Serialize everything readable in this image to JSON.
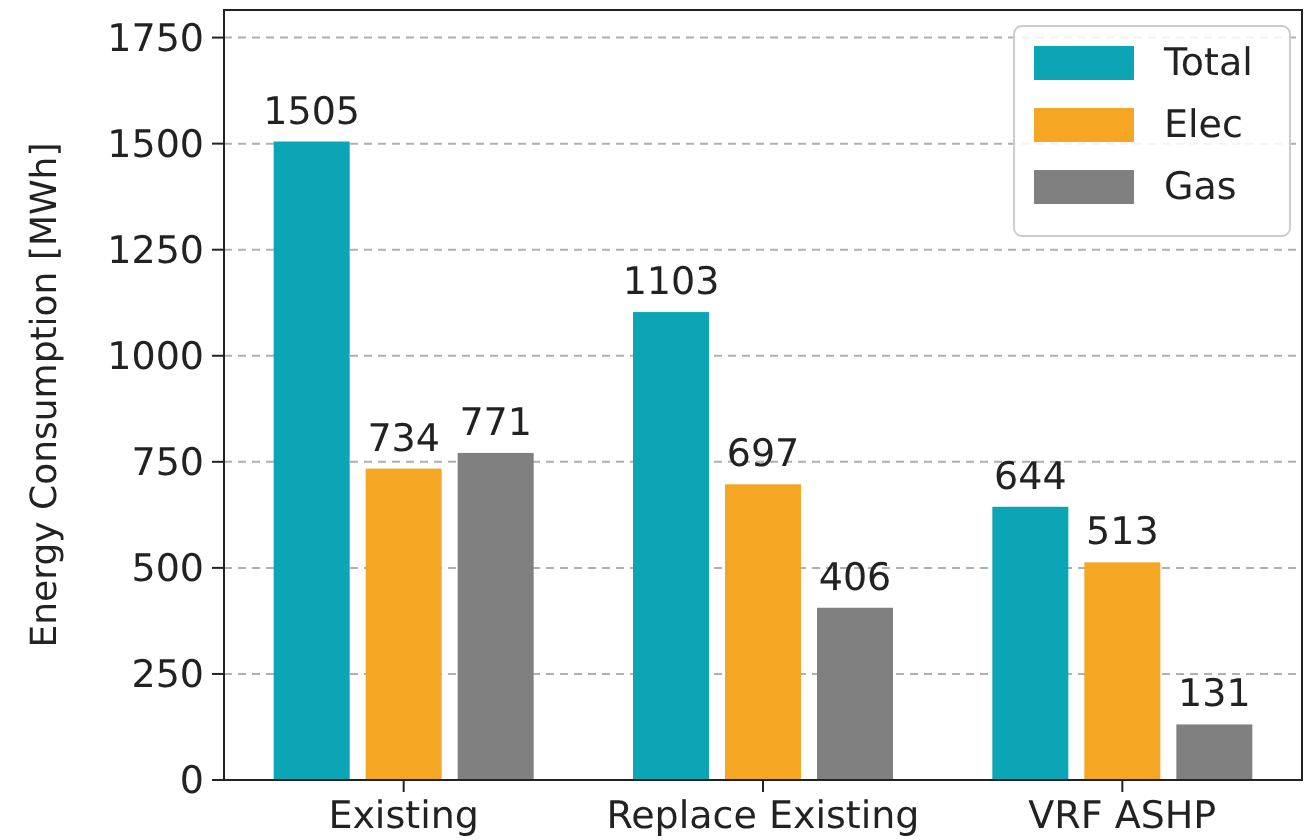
{
  "chart_data": {
    "type": "bar",
    "ylabel": "Energy Consumption [MWh]",
    "categories": [
      "Existing",
      "Replace Existing",
      "VRF ASHP"
    ],
    "series": [
      {
        "name": "Total",
        "color": "#0ba5b5",
        "values": [
          1505,
          1103,
          644
        ]
      },
      {
        "name": "Elec",
        "color": "#f5a623",
        "values": [
          734,
          697,
          513
        ]
      },
      {
        "name": "Gas",
        "color": "#808080",
        "values": [
          771,
          406,
          131
        ]
      }
    ],
    "ylim": [
      0,
      1815
    ],
    "yticks": [
      0,
      250,
      500,
      750,
      1000,
      1250,
      1500,
      1750
    ],
    "grid": "y",
    "legend": "top right",
    "data_labels": true
  }
}
